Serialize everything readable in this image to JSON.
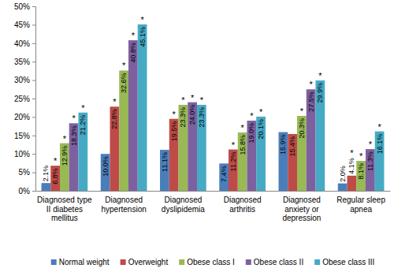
{
  "chart_data": {
    "type": "bar",
    "categories": [
      "Diagnosed type II diabetes mellitus",
      "Diagnosed hypertension",
      "Diagnosed dyslipidemia",
      "Diagnosed arthritis",
      "Diagnosed anxiety or depression",
      "Regular sleep apnea"
    ],
    "series": [
      {
        "name": "Normal weight",
        "color": "#4a7ebb",
        "values": [
          2.1,
          10.0,
          11.1,
          7.4,
          15.9,
          2.0
        ],
        "value_labels": [
          "2.1%",
          "10.0%",
          "11.1%",
          "7.4%",
          "15.9%",
          "2.0%"
        ],
        "annotations": [
          null,
          null,
          null,
          null,
          null,
          null
        ]
      },
      {
        "name": "Overweight",
        "color": "#be4b48",
        "values": [
          6.8,
          22.8,
          19.5,
          11.2,
          15.4,
          4.1
        ],
        "value_labels": [
          "6.8%",
          "22.8%",
          "19.5%",
          "11.2%",
          "15.4%",
          "4.1%"
        ],
        "annotations": [
          "*",
          "*",
          "*",
          "*",
          null,
          "*"
        ]
      },
      {
        "name": "Obese class I",
        "color": "#98b954",
        "values": [
          12.9,
          32.6,
          23.3,
          15.8,
          20.3,
          8.1
        ],
        "value_labels": [
          "12.9%",
          "32.6%",
          "23.3%",
          "15.8%",
          "20.3%",
          "8.1%"
        ],
        "annotations": [
          "*",
          "*",
          "*",
          "*",
          "*",
          "*"
        ]
      },
      {
        "name": "Obese class II",
        "color": "#7d60a0",
        "values": [
          18.3,
          40.8,
          24.0,
          19.0,
          27.5,
          11.3
        ],
        "value_labels": [
          "18.3%",
          "40.8%",
          "24.0%",
          "19.0%",
          "27.5%",
          "11.3%"
        ],
        "annotations": [
          "*",
          "*",
          "*",
          "*",
          "*",
          "*"
        ]
      },
      {
        "name": "Obese class III",
        "color": "#46aac5",
        "values": [
          21.2,
          45.1,
          23.3,
          20.1,
          29.9,
          16.1
        ],
        "value_labels": [
          "21.2%",
          "45.1%",
          "23.3%",
          "20.1%",
          "29.9%",
          "16.1%"
        ],
        "annotations": [
          "*",
          "*",
          "*",
          "*",
          "*",
          "*"
        ]
      }
    ],
    "ylim": [
      0,
      50
    ],
    "yticks": [
      {
        "value": 0,
        "label": "0%"
      },
      {
        "value": 5,
        "label": "5%"
      },
      {
        "value": 10,
        "label": "10%"
      },
      {
        "value": 15,
        "label": "15%"
      },
      {
        "value": 20,
        "label": "20%"
      },
      {
        "value": 25,
        "label": "25%"
      },
      {
        "value": 30,
        "label": "30%"
      },
      {
        "value": 35,
        "label": "35%"
      },
      {
        "value": 40,
        "label": "40%"
      },
      {
        "value": 45,
        "label": "45%"
      },
      {
        "value": 50,
        "label": "50%"
      }
    ],
    "grid": false,
    "data_labels": true,
    "legend": "bottom"
  }
}
